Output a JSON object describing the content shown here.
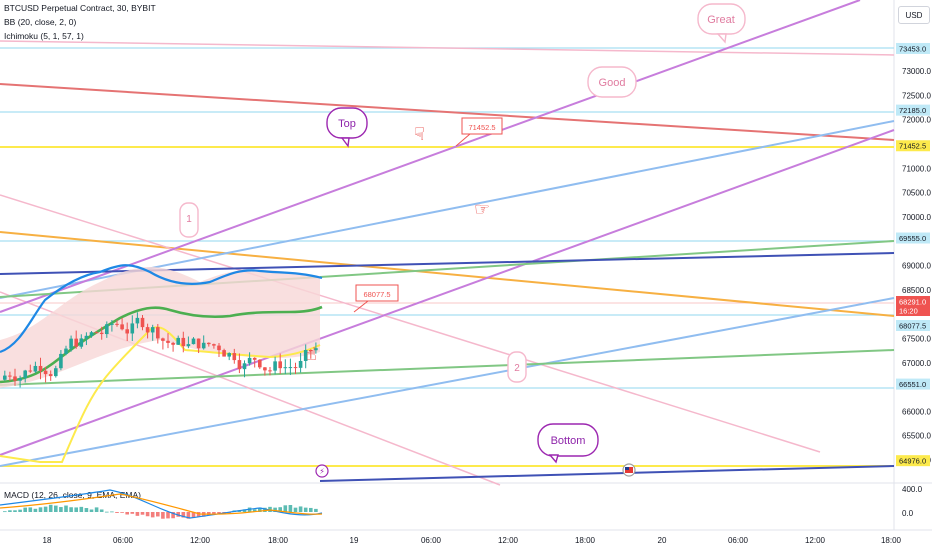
{
  "legend": {
    "symbol": "BTCUSD Perpetual Contract, 30, BYBIT",
    "bb": "BB (20, close, 2, 0)",
    "ichimoku": "Ichimoku (5, 1, 57, 1)",
    "macd": "MACD (12, 26, close, 9, EMA, EMA)"
  },
  "currency_button": "USD",
  "colors": {
    "up": "#26a69a",
    "down": "#ef5350",
    "bb_basis": "#4caf50",
    "bb_band": "#1e88e5",
    "ichimoku_lead": "#ffeb3b",
    "trend_purple": "#c77ddc",
    "trend_blue": "#90bdf0",
    "trend_pink": "#f5b8cc",
    "trend_red": "#e57373",
    "trend_orange": "#f7b042",
    "trend_green": "#81c784",
    "trend_navy": "#3f51b5",
    "level_cyan": "#a7dff2",
    "level_yellow": "#fdea4c"
  },
  "price_axis": {
    "ticks": [
      "73000.0",
      "72500.0",
      "72000.0",
      "71000.0",
      "70500.0",
      "70000.0",
      "69000.0",
      "68500.0",
      "67500.0",
      "67000.0",
      "66000.0",
      "65500.0",
      "65000.0"
    ],
    "tags": [
      {
        "value": "73453.0",
        "style": "cyan"
      },
      {
        "value": "72185.0",
        "style": "cyan"
      },
      {
        "value": "71452.5",
        "style": "yellow"
      },
      {
        "value": "69555.0",
        "style": "cyan"
      },
      {
        "value": "68291.0",
        "style": "red"
      },
      {
        "value": "16:20",
        "style": "red"
      },
      {
        "value": "68077.5",
        "style": "cyan"
      },
      {
        "value": "66551.0",
        "style": "cyan"
      },
      {
        "value": "64976.0",
        "style": "yellow"
      }
    ]
  },
  "macd_axis": {
    "ticks": [
      "400.0",
      "0.0"
    ]
  },
  "time_axis": {
    "ticks": [
      "18",
      "06:00",
      "12:00",
      "18:00",
      "19",
      "06:00",
      "12:00",
      "18:00",
      "20",
      "06:00",
      "12:00",
      "18:00"
    ]
  },
  "callouts": {
    "great": "Great",
    "good": "Good",
    "top": "Top",
    "one": "1",
    "two": "2",
    "bottom": "Bottom",
    "price_high": "71452.5",
    "price_low": "68077.5"
  }
}
